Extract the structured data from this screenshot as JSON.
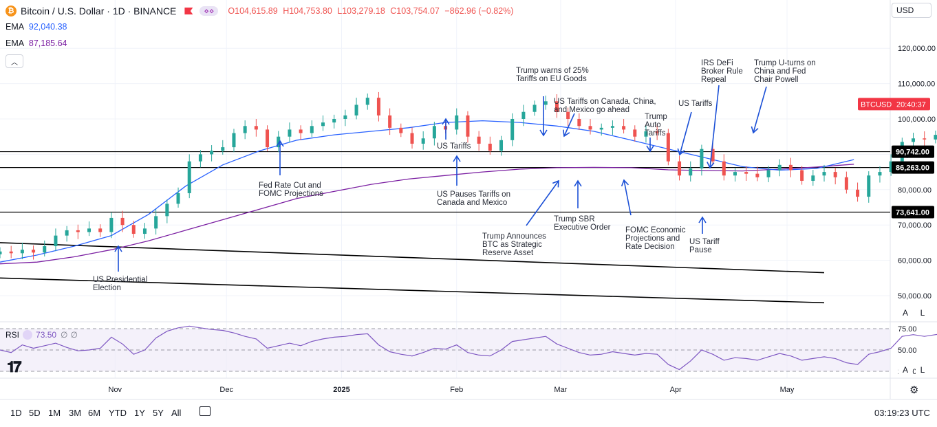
{
  "header": {
    "symbol_title": "Bitcoin / U.S. Dollar · 1D · BINANCE",
    "open": "O104,615.89",
    "high": "H104,753.80",
    "low": "L103,279.18",
    "close": "C103,754.07",
    "change": "−862.96 (−0.82%)",
    "ema1_label": "EMA",
    "ema1_value": "92,040.38",
    "ema2_label": "EMA",
    "ema2_value": "87,185.64",
    "currency": "USD"
  },
  "rsi": {
    "label": "RSI",
    "value": "73.50",
    "extra1": "∅",
    "extra2": "∅",
    "ticks": [
      "75.00",
      "50.00",
      "25.00"
    ]
  },
  "price_axis": {
    "ticks": [
      "120,000.00",
      "110,000.00",
      "100,000.00",
      "90,000.00",
      "80,000.00",
      "70,000.00",
      "60,000.00",
      "50,000.00"
    ],
    "tag_symbol": "BTCUSD",
    "tag_time": "20:40:37",
    "levels": [
      "90,742.00",
      "86,263.00",
      "73,641.00"
    ]
  },
  "time_axis": {
    "ticks": [
      "Nov",
      "Dec",
      "2025",
      "Feb",
      "Mar",
      "Apr",
      "May"
    ]
  },
  "timeframes": [
    "1D",
    "5D",
    "1M",
    "3M",
    "6M",
    "YTD",
    "1Y",
    "5Y",
    "All"
  ],
  "clock": "03:19:23 UTC",
  "scale_buttons": {
    "auto": "A",
    "log": "L"
  },
  "colors": {
    "up": "#26a69a",
    "down": "#ef5350",
    "ema_fast": "#2962ff",
    "ema_slow": "#7b1fa2",
    "rsi_line": "#7e57c2",
    "annotation_arrow": "#1a4fd6"
  },
  "annotations": [
    {
      "text": [
        "US Presidential",
        "Election"
      ]
    },
    {
      "text": [
        "Fed Rate Cut and",
        "FOMC Projections"
      ]
    },
    {
      "text": [
        "US Tariffs"
      ]
    },
    {
      "text": [
        "US Pauses Tariffs on",
        "Canada and Mexico"
      ]
    },
    {
      "text": [
        "Trump warns of 25%",
        "Tariffs on EU Goods"
      ]
    },
    {
      "text": [
        "US Tariffs on Canada, China,",
        "and Mexico go ahead"
      ]
    },
    {
      "text": [
        "Trump Announces",
        "BTC as Strategic",
        "Reserve Asset"
      ]
    },
    {
      "text": [
        "Trump SBR",
        "Executive Order"
      ]
    },
    {
      "text": [
        "Trump",
        "Auto",
        "Tariffs"
      ]
    },
    {
      "text": [
        "FOMC Economic",
        "Projections and",
        "Rate Decision"
      ]
    },
    {
      "text": [
        "US Tariffs"
      ]
    },
    {
      "text": [
        "IRS DeFi",
        "Broker Rule",
        "Repeal"
      ]
    },
    {
      "text": [
        "US Tariff",
        "Pause"
      ]
    },
    {
      "text": [
        "Trump U-turns on",
        "China and Fed",
        "Chair Powell"
      ]
    }
  ],
  "chart_data": {
    "type": "candlestick",
    "title": "Bitcoin / U.S. Dollar · 1D · BINANCE",
    "ylim": [
      45000,
      127000
    ],
    "y_ticks": [
      50000,
      60000,
      70000,
      80000,
      90000,
      100000,
      110000,
      120000
    ],
    "horizontal_levels": [
      90742,
      86263,
      73641
    ],
    "trendlines": [
      {
        "from": [
          "2024-10-01",
          65000
        ],
        "to": [
          "2025-05-11",
          56500
        ]
      },
      {
        "from": [
          "2024-10-01",
          55000
        ],
        "to": [
          "2025-05-11",
          48000
        ]
      }
    ],
    "close_series": {
      "start": "2024-10-01",
      "step_days": 3,
      "values": [
        62500,
        62000,
        63000,
        62200,
        64000,
        67000,
        68500,
        68000,
        69000,
        68000,
        72000,
        70000,
        67500,
        69000,
        72500,
        76000,
        79000,
        88000,
        90000,
        91000,
        92000,
        96000,
        98000,
        97000,
        92000,
        95000,
        97000,
        96000,
        98000,
        99000,
        100000,
        101000,
        104000,
        106000,
        101000,
        97500,
        96000,
        93000,
        94500,
        98000,
        97000,
        101000,
        95000,
        93000,
        91000,
        94000,
        100000,
        102000,
        104000,
        105000,
        102000,
        100000,
        98000,
        97000,
        97500,
        98000,
        97000,
        95000,
        96500,
        96000,
        88000,
        84000,
        86000,
        91500,
        88000,
        84000,
        85000,
        84500,
        83500,
        85500,
        87000,
        85500,
        82500,
        84000,
        85000,
        83500,
        80000,
        78000,
        84000,
        85000,
        88000,
        93500,
        94500,
        94200,
        95500,
        96500,
        97000,
        103500,
        104200
      ]
    },
    "ema_fast": {
      "start": "2024-10-01",
      "step_days": 10,
      "values": [
        59500,
        61500,
        64000,
        67000,
        73000,
        81000,
        87000,
        91000,
        94000,
        95500,
        96500,
        97500,
        99000,
        99500,
        99000,
        98000,
        96500,
        94000,
        91500,
        89000,
        86500,
        85500,
        86000,
        88500
      ]
    },
    "ema_slow": {
      "start": "2024-10-01",
      "step_days": 10,
      "values": [
        59000,
        59500,
        61000,
        63000,
        65500,
        68500,
        71500,
        74500,
        77500,
        79500,
        81500,
        83000,
        84000,
        85000,
        85800,
        86200,
        86300,
        86200,
        85600,
        85400,
        85300,
        85800,
        86400,
        87200
      ]
    },
    "rsi_series": {
      "start": "2024-10-01",
      "step_days": 3,
      "values": [
        50,
        47,
        56,
        52,
        55,
        58,
        53,
        49,
        50,
        52,
        65,
        57,
        45,
        50,
        64,
        72,
        76,
        78,
        76,
        74,
        73,
        70,
        66,
        63,
        52,
        55,
        58,
        55,
        60,
        63,
        65,
        66,
        68,
        69,
        56,
        48,
        45,
        43,
        47,
        52,
        51,
        56,
        47,
        44,
        43,
        50,
        60,
        62,
        64,
        66,
        57,
        52,
        47,
        44,
        45,
        48,
        46,
        44,
        46,
        45,
        33,
        27,
        37,
        50,
        45,
        38,
        41,
        40,
        38,
        42,
        46,
        43,
        38,
        40,
        42,
        40,
        35,
        33,
        45,
        48,
        52,
        66,
        68,
        66,
        68,
        70,
        70,
        76,
        73.5
      ]
    },
    "rsi_levels": [
      70,
      50,
      30
    ]
  }
}
